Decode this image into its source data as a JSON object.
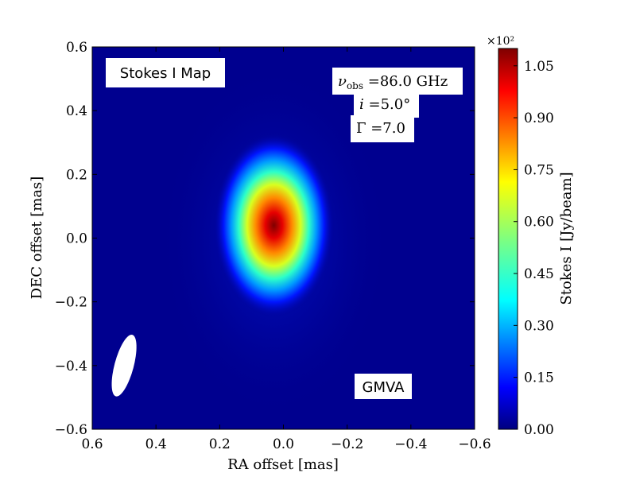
{
  "chart_data": {
    "type": "heatmap",
    "title": "Stokes I Map",
    "xlabel": "RA offset [mas]",
    "ylabel": "DEC offset [mas]",
    "xlim": [
      0.6,
      -0.6
    ],
    "ylim": [
      -0.6,
      0.6
    ],
    "x_ticks": [
      "0.6",
      "0.4",
      "0.2",
      "0.0",
      "−0.2",
      "−0.4",
      "−0.6"
    ],
    "y_ticks": [
      "−0.6",
      "−0.4",
      "−0.2",
      "0.0",
      "0.2",
      "0.4",
      "0.6"
    ],
    "colorbar": {
      "label": "Stokes I [Jy/beam]",
      "scale_label": "×10²",
      "range": [
        0.0,
        1.1
      ],
      "ticks": [
        "0.00",
        "0.15",
        "0.30",
        "0.45",
        "0.60",
        "0.75",
        "0.90",
        "1.05"
      ],
      "colormap": "jet"
    },
    "source": {
      "center_ra": 0.03,
      "center_dec": 0.04,
      "peak": 1.1
    },
    "beam": {
      "ra": 0.5,
      "dec": -0.4,
      "major": 0.2,
      "minor": 0.06
    },
    "annotations": {
      "nu_symbol": "ν",
      "nu_sub": "obs",
      "nu_value": " =86.0 GHz",
      "inc_symbol": "i",
      "inc_value": " =5.0°",
      "gamma_symbol": "Γ",
      "gamma_value": " =7.0",
      "instrument": "GMVA"
    }
  }
}
